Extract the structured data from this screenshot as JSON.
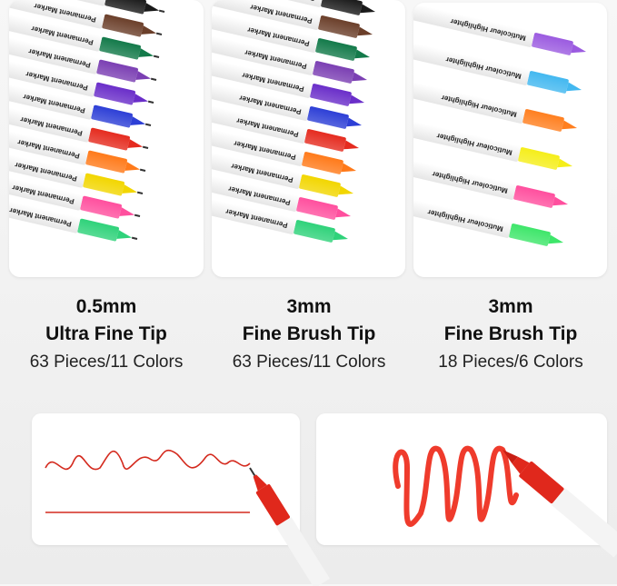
{
  "panels": [
    {
      "pen_label": "Permanent Marker",
      "colors": [
        "#1a1a1a",
        "#6b3f2a",
        "#137a4a",
        "#7b3fb3",
        "#6a2ec9",
        "#2d3fd6",
        "#e52b1f",
        "#ff7a1a",
        "#f2d600",
        "#ff4f9e",
        "#2fd27a"
      ],
      "tip": "fine"
    },
    {
      "pen_label": "Permanent Marker",
      "colors": [
        "#1a1a1a",
        "#6b3f2a",
        "#137a4a",
        "#7b3fb3",
        "#6a2ec9",
        "#2d3fd6",
        "#e52b1f",
        "#ff7a1a",
        "#f2d600",
        "#ff4f9e",
        "#2fd27a"
      ],
      "tip": "brush"
    },
    {
      "pen_label": "Muticoleur Highlighter",
      "colors": [
        "#9b5be0",
        "#43b8f0",
        "#ff7f1f",
        "#f5ee1a",
        "#ff4f9e",
        "#3ee66a"
      ],
      "tip": "brush"
    }
  ],
  "captions": [
    {
      "size": "0.5mm",
      "tip": "Ultra Fine Tip",
      "count": "63 Pieces/11 Colors"
    },
    {
      "size": "3mm",
      "tip": "Fine Brush Tip",
      "count": "63 Pieces/11 Colors"
    },
    {
      "size": "3mm",
      "tip": "Fine Brush Tip",
      "count": "18 Pieces/6 Colors"
    }
  ],
  "demo_color": "#e0281c"
}
